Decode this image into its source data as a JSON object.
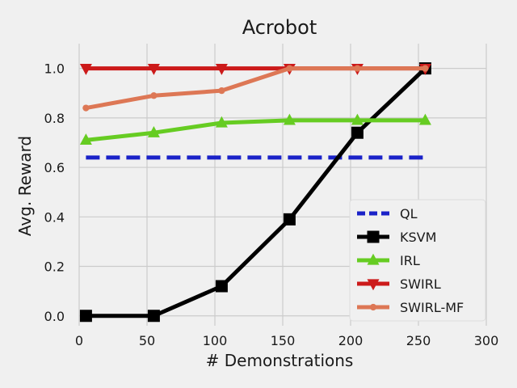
{
  "chart_data": {
    "type": "line",
    "title": "Acrobot",
    "xlabel": "# Demonstrations",
    "ylabel": "Avg. Reward",
    "xlim": [
      0,
      300
    ],
    "ylim": [
      -0.04,
      1.1
    ],
    "xticks": [
      0,
      50,
      100,
      150,
      200,
      250,
      300
    ],
    "yticks": [
      0.0,
      0.2,
      0.4,
      0.6,
      0.8,
      1.0
    ],
    "xtick_labels": [
      "0",
      "50",
      "100",
      "150",
      "200",
      "250",
      "300"
    ],
    "ytick_labels": [
      "0.0",
      "0.2",
      "0.4",
      "0.6",
      "0.8",
      "1.0"
    ],
    "grid": true,
    "legend_position": "lower-right",
    "series": [
      {
        "name": "QL",
        "color": "#1a22c8",
        "style": "dashed",
        "marker": "none",
        "x": [
          5,
          255
        ],
        "y": [
          0.64,
          0.64
        ]
      },
      {
        "name": "KSVM",
        "color": "#000000",
        "style": "solid",
        "marker": "square",
        "x": [
          5,
          55,
          105,
          155,
          205,
          255
        ],
        "y": [
          0.0,
          0.0,
          0.12,
          0.39,
          0.74,
          1.0
        ]
      },
      {
        "name": "IRL",
        "color": "#66cc22",
        "style": "solid",
        "marker": "triangle-up",
        "x": [
          5,
          55,
          105,
          155,
          205,
          255
        ],
        "y": [
          0.71,
          0.74,
          0.78,
          0.79,
          0.79,
          0.79
        ]
      },
      {
        "name": "SWIRL",
        "color": "#cc1a1a",
        "style": "solid",
        "marker": "triangle-down",
        "x": [
          5,
          55,
          105,
          155,
          205,
          255
        ],
        "y": [
          1.0,
          1.0,
          1.0,
          1.0,
          1.0,
          1.0
        ]
      },
      {
        "name": "SWIRL-MF",
        "color": "#dd7755",
        "style": "solid",
        "marker": "circle",
        "x": [
          5,
          55,
          105,
          155,
          205,
          255
        ],
        "y": [
          0.84,
          0.89,
          0.91,
          1.0,
          1.0,
          1.0
        ]
      }
    ]
  }
}
